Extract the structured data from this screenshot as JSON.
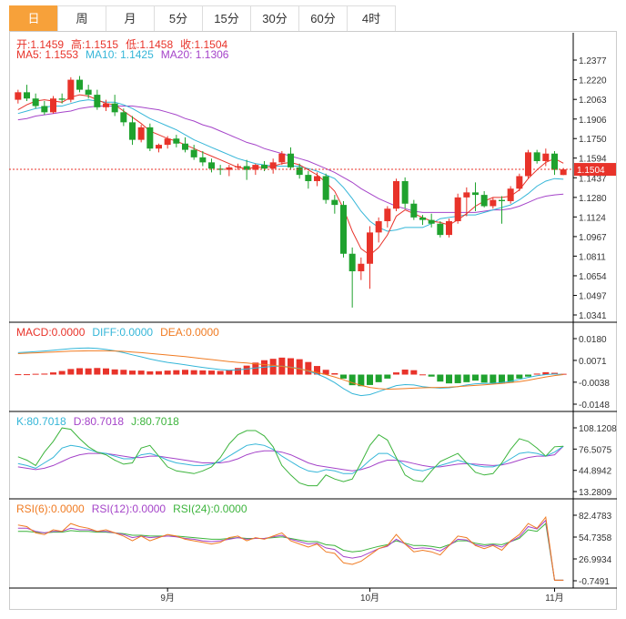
{
  "tabs": [
    {
      "label": "日",
      "active": true
    },
    {
      "label": "周",
      "active": false
    },
    {
      "label": "月",
      "active": false
    },
    {
      "label": "5分",
      "active": false
    },
    {
      "label": "15分",
      "active": false
    },
    {
      "label": "30分",
      "active": false
    },
    {
      "label": "60分",
      "active": false
    },
    {
      "label": "4时",
      "active": false
    }
  ],
  "ohlc_legend": {
    "open": "开:1.1459",
    "high": "高:1.1515",
    "low": "低:1.1458",
    "close": "收:1.1504"
  },
  "ma_legend": {
    "ma5": "MA5: 1.1553",
    "ma10": "MA10: 1.1425",
    "ma20": "MA20: 1.1306"
  },
  "macd_legend": {
    "macd": "MACD:0.0000",
    "diff": "DIFF:0.0000",
    "dea": "DEA:0.0000"
  },
  "kdj_legend": {
    "k": "K:80.7018",
    "d": "D:80.7018",
    "j": "J:80.7018"
  },
  "rsi_legend": {
    "r6": "RSI(6):0.0000",
    "r12": "RSI(12):0.0000",
    "r24": "RSI(24):0.0000"
  },
  "colors": {
    "up": "#e8332a",
    "down": "#1fa22e",
    "ma5": "#e8332a",
    "ma10": "#35b6d8",
    "ma20": "#a544c9",
    "diff": "#35b6d8",
    "dea": "#f07b22",
    "k": "#35b6d8",
    "d": "#a544c9",
    "j": "#3cb43c",
    "r6": "#f07b22",
    "r12": "#a544c9",
    "r24": "#3cb43c"
  },
  "chart_data": {
    "type": "candlestick",
    "main_panel": {
      "ylim": [
        1.0341,
        1.2377
      ],
      "yticks": [
        "1.2377",
        "1.2220",
        "1.2063",
        "1.1906",
        "1.1750",
        "1.1594",
        "1.1437",
        "1.1280",
        "1.1124",
        "1.0967",
        "1.0811",
        "1.0654",
        "1.0497",
        "1.0341"
      ],
      "current_price": "1.1504",
      "candles": [
        [
          1.206,
          1.214,
          1.203,
          1.212
        ],
        [
          1.212,
          1.218,
          1.205,
          1.207
        ],
        [
          1.207,
          1.211,
          1.199,
          1.201
        ],
        [
          1.201,
          1.205,
          1.194,
          1.196
        ],
        [
          1.196,
          1.209,
          1.195,
          1.207
        ],
        [
          1.207,
          1.211,
          1.203,
          1.206
        ],
        [
          1.206,
          1.224,
          1.204,
          1.222
        ],
        [
          1.222,
          1.225,
          1.212,
          1.214
        ],
        [
          1.214,
          1.218,
          1.207,
          1.21
        ],
        [
          1.21,
          1.214,
          1.198,
          1.2
        ],
        [
          1.2,
          1.206,
          1.197,
          1.203
        ],
        [
          1.203,
          1.21,
          1.193,
          1.196
        ],
        [
          1.196,
          1.199,
          1.185,
          1.188
        ],
        [
          1.188,
          1.193,
          1.17,
          1.174
        ],
        [
          1.174,
          1.186,
          1.172,
          1.184
        ],
        [
          1.184,
          1.187,
          1.165,
          1.167
        ],
        [
          1.167,
          1.171,
          1.164,
          1.17
        ],
        [
          1.17,
          1.177,
          1.167,
          1.175
        ],
        [
          1.175,
          1.178,
          1.168,
          1.171
        ],
        [
          1.171,
          1.176,
          1.164,
          1.166
        ],
        [
          1.166,
          1.17,
          1.158,
          1.16
        ],
        [
          1.16,
          1.165,
          1.153,
          1.156
        ],
        [
          1.156,
          1.159,
          1.148,
          1.151
        ],
        [
          1.151,
          1.154,
          1.146,
          1.15
        ],
        [
          1.15,
          1.154,
          1.145,
          1.152
        ],
        [
          1.152,
          1.155,
          1.15,
          1.153
        ],
        [
          1.153,
          1.158,
          1.142,
          1.15
        ],
        [
          1.15,
          1.155,
          1.146,
          1.154
        ],
        [
          1.154,
          1.157,
          1.149,
          1.151
        ],
        [
          1.151,
          1.159,
          1.147,
          1.156
        ],
        [
          1.156,
          1.165,
          1.154,
          1.163
        ],
        [
          1.163,
          1.168,
          1.15,
          1.152
        ],
        [
          1.152,
          1.155,
          1.143,
          1.146
        ],
        [
          1.146,
          1.149,
          1.135,
          1.141
        ],
        [
          1.141,
          1.148,
          1.137,
          1.145
        ],
        [
          1.145,
          1.147,
          1.123,
          1.126
        ],
        [
          1.126,
          1.13,
          1.115,
          1.122
        ],
        [
          1.122,
          1.125,
          1.08,
          1.083
        ],
        [
          1.083,
          1.088,
          1.04,
          1.069
        ],
        [
          1.069,
          1.08,
          1.062,
          1.075
        ],
        [
          1.075,
          1.105,
          1.055,
          1.1
        ],
        [
          1.1,
          1.112,
          1.092,
          1.109
        ],
        [
          1.109,
          1.121,
          1.104,
          1.119
        ],
        [
          1.119,
          1.143,
          1.117,
          1.141
        ],
        [
          1.141,
          1.144,
          1.119,
          1.123
        ],
        [
          1.123,
          1.126,
          1.11,
          1.112
        ],
        [
          1.112,
          1.114,
          1.106,
          1.11
        ],
        [
          1.11,
          1.115,
          1.104,
          1.107
        ],
        [
          1.107,
          1.109,
          1.096,
          1.098
        ],
        [
          1.098,
          1.111,
          1.096,
          1.109
        ],
        [
          1.109,
          1.131,
          1.107,
          1.128
        ],
        [
          1.128,
          1.136,
          1.113,
          1.132
        ],
        [
          1.132,
          1.14,
          1.117,
          1.13
        ],
        [
          1.13,
          1.133,
          1.12,
          1.121
        ],
        [
          1.121,
          1.128,
          1.119,
          1.126
        ],
        [
          1.126,
          1.129,
          1.107,
          1.125
        ],
        [
          1.125,
          1.137,
          1.123,
          1.135
        ],
        [
          1.135,
          1.147,
          1.133,
          1.145
        ],
        [
          1.145,
          1.166,
          1.143,
          1.164
        ],
        [
          1.164,
          1.166,
          1.155,
          1.157
        ],
        [
          1.157,
          1.167,
          1.153,
          1.163
        ],
        [
          1.163,
          1.165,
          1.146,
          1.15
        ],
        [
          1.1459,
          1.1515,
          1.1458,
          1.1504
        ]
      ],
      "ma5": [
        1.198,
        1.202,
        1.205,
        1.206,
        1.205,
        1.204,
        1.208,
        1.21,
        1.209,
        1.206,
        1.203,
        1.202,
        1.197,
        1.192,
        1.187,
        1.181,
        1.178,
        1.175,
        1.173,
        1.17,
        1.167,
        1.164,
        1.161,
        1.158,
        1.155,
        1.152,
        1.151,
        1.152,
        1.152,
        1.153,
        1.155,
        1.156,
        1.154,
        1.15,
        1.146,
        1.14,
        1.133,
        1.119,
        1.101,
        1.087,
        1.082,
        1.088,
        1.098,
        1.113,
        1.118,
        1.115,
        1.112,
        1.109,
        1.108,
        1.106,
        1.11,
        1.115,
        1.121,
        1.125,
        1.128,
        1.128,
        1.129,
        1.134,
        1.143,
        1.15,
        1.156,
        1.159,
        1.1553
      ],
      "ma10": [
        1.195,
        1.197,
        1.199,
        1.2,
        1.201,
        1.201,
        1.203,
        1.205,
        1.206,
        1.205,
        1.204,
        1.204,
        1.202,
        1.199,
        1.195,
        1.191,
        1.188,
        1.185,
        1.182,
        1.178,
        1.174,
        1.171,
        1.168,
        1.165,
        1.162,
        1.159,
        1.157,
        1.155,
        1.154,
        1.153,
        1.153,
        1.153,
        1.153,
        1.151,
        1.149,
        1.146,
        1.143,
        1.136,
        1.127,
        1.117,
        1.109,
        1.104,
        1.101,
        1.102,
        1.104,
        1.104,
        1.104,
        1.107,
        1.111,
        1.112,
        1.113,
        1.114,
        1.114,
        1.116,
        1.118,
        1.12,
        1.122,
        1.126,
        1.131,
        1.137,
        1.141,
        1.143,
        1.1425
      ],
      "ma20": [
        1.19,
        1.191,
        1.193,
        1.194,
        1.195,
        1.196,
        1.197,
        1.199,
        1.2,
        1.201,
        1.201,
        1.201,
        1.201,
        1.201,
        1.2,
        1.199,
        1.198,
        1.196,
        1.194,
        1.191,
        1.189,
        1.186,
        1.184,
        1.181,
        1.178,
        1.175,
        1.172,
        1.17,
        1.167,
        1.165,
        1.163,
        1.161,
        1.159,
        1.157,
        1.154,
        1.151,
        1.148,
        1.144,
        1.14,
        1.135,
        1.131,
        1.127,
        1.124,
        1.121,
        1.119,
        1.117,
        1.116,
        1.116,
        1.116,
        1.116,
        1.116,
        1.116,
        1.116,
        1.117,
        1.118,
        1.118,
        1.119,
        1.121,
        1.124,
        1.127,
        1.129,
        1.13,
        1.1306
      ]
    },
    "macd_panel": {
      "ylim": [
        -0.0148,
        0.018
      ],
      "yticks": [
        "0.0180",
        "0.0071",
        "-0.0038",
        "-0.0148"
      ],
      "hist": [
        0.0002,
        0.0002,
        0.0004,
        0.0005,
        0.0011,
        0.0018,
        0.0028,
        0.0032,
        0.0031,
        0.0033,
        0.0031,
        0.0026,
        0.0024,
        0.002,
        0.002,
        0.0016,
        0.0017,
        0.002,
        0.0022,
        0.0024,
        0.0022,
        0.0021,
        0.002,
        0.0018,
        0.0023,
        0.0033,
        0.0045,
        0.006,
        0.0072,
        0.0079,
        0.0085,
        0.0082,
        0.0077,
        0.0063,
        0.0043,
        0.0024,
        0.0007,
        -0.002,
        -0.0053,
        -0.0058,
        -0.0052,
        -0.0038,
        -0.002,
        0.0011,
        0.0025,
        0.0022,
        0.0001,
        -0.001,
        -0.0035,
        -0.0044,
        -0.0043,
        -0.0038,
        -0.003,
        -0.004,
        -0.0045,
        -0.0045,
        -0.0038,
        -0.002,
        -0.001,
        0.0005,
        0.0012,
        0.0009,
        0.0004
      ],
      "diff": [
        0.011,
        0.0112,
        0.0115,
        0.0118,
        0.0122,
        0.0126,
        0.013,
        0.0132,
        0.0133,
        0.0131,
        0.0126,
        0.0119,
        0.011,
        0.0099,
        0.0089,
        0.0078,
        0.0069,
        0.0061,
        0.0055,
        0.0049,
        0.0042,
        0.0036,
        0.003,
        0.0025,
        0.0022,
        0.0024,
        0.0028,
        0.0033,
        0.0037,
        0.0041,
        0.0042,
        0.0037,
        0.003,
        0.0018,
        0.0003,
        -0.0016,
        -0.004,
        -0.007,
        -0.0095,
        -0.0105,
        -0.01,
        -0.0085,
        -0.007,
        -0.0055,
        -0.005,
        -0.0052,
        -0.006,
        -0.0065,
        -0.0068,
        -0.0066,
        -0.006,
        -0.0052,
        -0.0046,
        -0.0044,
        -0.0043,
        -0.004,
        -0.0034,
        -0.0024,
        -0.0014,
        -0.0006,
        0.0,
        0.0003,
        0.0
      ],
      "dea": [
        0.0105,
        0.0107,
        0.0109,
        0.0111,
        0.0113,
        0.0115,
        0.0117,
        0.0118,
        0.0119,
        0.0119,
        0.0119,
        0.0118,
        0.0116,
        0.0113,
        0.011,
        0.0106,
        0.0102,
        0.0098,
        0.0094,
        0.009,
        0.0085,
        0.008,
        0.0075,
        0.007,
        0.0065,
        0.0061,
        0.0058,
        0.0054,
        0.005,
        0.0046,
        0.0041,
        0.0035,
        0.0028,
        0.002,
        0.0011,
        0.0,
        -0.0012,
        -0.0026,
        -0.0041,
        -0.0054,
        -0.0064,
        -0.007,
        -0.0073,
        -0.0072,
        -0.007,
        -0.0068,
        -0.0066,
        -0.0065,
        -0.0064,
        -0.0063,
        -0.006,
        -0.0057,
        -0.0054,
        -0.0051,
        -0.0048,
        -0.0044,
        -0.004,
        -0.0035,
        -0.0028,
        -0.002,
        -0.0012,
        -0.0005,
        0.0
      ]
    },
    "kdj_panel": {
      "ylim": [
        13.2809,
        108.1208
      ],
      "yticks": [
        "108.1208",
        "76.5075",
        "44.8942",
        "13.2809"
      ],
      "k": [
        55,
        52,
        48,
        56,
        64,
        78,
        82,
        80,
        76,
        72,
        70,
        66,
        62,
        62,
        68,
        70,
        66,
        60,
        56,
        54,
        52,
        52,
        54,
        58,
        66,
        74,
        82,
        84,
        82,
        76,
        66,
        58,
        50,
        44,
        42,
        46,
        44,
        40,
        40,
        48,
        60,
        70,
        70,
        62,
        52,
        46,
        44,
        48,
        52,
        56,
        60,
        56,
        52,
        50,
        50,
        54,
        62,
        70,
        72,
        70,
        66,
        72,
        80.7
      ],
      "d": [
        50,
        48,
        46,
        48,
        52,
        58,
        64,
        68,
        70,
        70,
        70,
        68,
        66,
        64,
        64,
        66,
        66,
        64,
        62,
        60,
        58,
        56,
        56,
        56,
        58,
        62,
        68,
        72,
        74,
        74,
        72,
        68,
        62,
        56,
        52,
        50,
        48,
        46,
        44,
        46,
        50,
        56,
        60,
        60,
        58,
        55,
        52,
        50,
        50,
        52,
        54,
        55,
        54,
        53,
        52,
        53,
        56,
        60,
        64,
        66,
        66,
        68,
        80.7
      ],
      "j": [
        65,
        60,
        52,
        72,
        88,
        108,
        106,
        92,
        80,
        72,
        68,
        60,
        54,
        56,
        78,
        82,
        66,
        50,
        44,
        42,
        40,
        44,
        50,
        64,
        84,
        98,
        104,
        104,
        96,
        80,
        52,
        38,
        26,
        22,
        22,
        38,
        32,
        28,
        32,
        56,
        82,
        98,
        90,
        64,
        38,
        30,
        28,
        44,
        58,
        64,
        70,
        56,
        42,
        38,
        40,
        56,
        76,
        92,
        88,
        78,
        66,
        80,
        80.7
      ]
    },
    "rsi_panel": {
      "ylim": [
        -0.7491,
        82.4783
      ],
      "yticks": [
        "82.4783",
        "54.7358",
        "26.9934",
        "-0.7491"
      ],
      "rsi6": [
        70,
        68,
        60,
        58,
        64,
        62,
        72,
        68,
        66,
        62,
        64,
        60,
        56,
        50,
        56,
        50,
        54,
        58,
        56,
        52,
        50,
        48,
        46,
        48,
        54,
        56,
        50,
        54,
        52,
        56,
        60,
        50,
        46,
        42,
        46,
        36,
        34,
        22,
        20,
        24,
        32,
        40,
        44,
        58,
        46,
        36,
        38,
        36,
        32,
        44,
        56,
        54,
        44,
        40,
        44,
        38,
        50,
        58,
        72,
        66,
        80,
        0,
        0
      ],
      "rsi12": [
        66,
        66,
        62,
        60,
        62,
        62,
        66,
        64,
        64,
        62,
        62,
        60,
        58,
        54,
        56,
        54,
        55,
        56,
        55,
        53,
        52,
        50,
        49,
        50,
        52,
        54,
        52,
        53,
        53,
        55,
        57,
        52,
        49,
        46,
        47,
        41,
        39,
        30,
        28,
        30,
        35,
        40,
        43,
        52,
        46,
        40,
        41,
        40,
        37,
        44,
        52,
        51,
        45,
        43,
        45,
        42,
        49,
        55,
        68,
        65,
        76,
        0,
        0
      ],
      "rsi24": [
        62,
        62,
        61,
        60,
        61,
        61,
        63,
        62,
        62,
        61,
        61,
        60,
        59,
        57,
        57,
        56,
        56,
        56,
        56,
        55,
        54,
        53,
        52,
        52,
        53,
        54,
        53,
        53,
        53,
        54,
        55,
        53,
        51,
        49,
        49,
        45,
        44,
        38,
        36,
        37,
        40,
        43,
        45,
        50,
        47,
        44,
        44,
        43,
        41,
        45,
        50,
        50,
        47,
        45,
        46,
        45,
        49,
        53,
        64,
        62,
        72,
        0,
        0
      ]
    },
    "x_labels": [
      {
        "index": 17,
        "label": "9月"
      },
      {
        "index": 40,
        "label": "10月"
      },
      {
        "index": 61,
        "label": "11月"
      }
    ]
  }
}
